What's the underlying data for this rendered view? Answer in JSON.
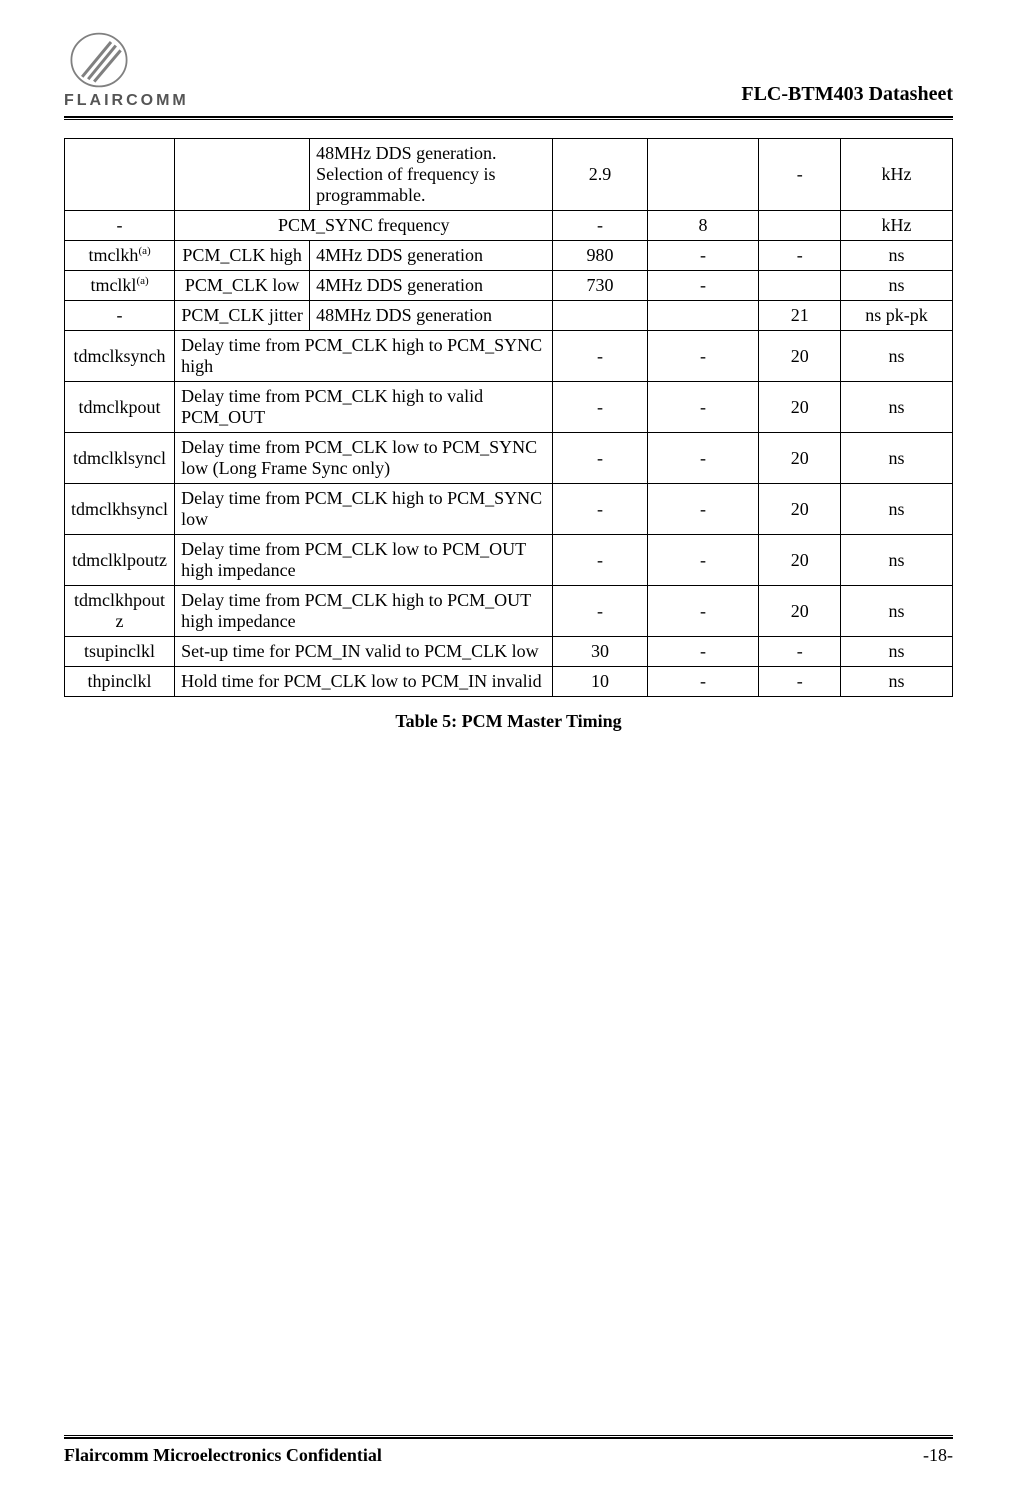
{
  "header": {
    "logo_text": "FLAIRCOMM",
    "doc_title": "FLC-BTM403 Datasheet"
  },
  "table": {
    "rows": [
      {
        "sym": "",
        "param": "",
        "desc": "48MHz DDS generation. Selection of frequency is programmable.",
        "min": "2.9",
        "typ": "",
        "max": "-",
        "unit": "kHz",
        "merge_param_desc": false
      },
      {
        "sym": "-",
        "param": "",
        "desc": "PCM_SYNC frequency",
        "min": "-",
        "typ": "8",
        "max": "",
        "unit": "kHz",
        "merge_param_desc": true
      },
      {
        "sym": "tmclkh",
        "sup": "(a)",
        "param": "PCM_CLK high",
        "desc": "4MHz DDS generation",
        "min": "980",
        "typ": "-",
        "max": "-",
        "unit": "ns",
        "merge_param_desc": false
      },
      {
        "sym": "tmclkl",
        "sup": "(a)",
        "param": "PCM_CLK low",
        "desc": "4MHz DDS generation",
        "min": "730",
        "typ": "-",
        "max": "",
        "unit": "ns",
        "merge_param_desc": false
      },
      {
        "sym": "-",
        "param": "PCM_CLK jitter",
        "desc": "48MHz DDS generation",
        "min": "",
        "typ": "",
        "max": "21",
        "unit": "ns pk-pk",
        "merge_param_desc": false
      },
      {
        "sym": "tdmclksynch",
        "param": "",
        "desc": "Delay time from PCM_CLK high to PCM_SYNC high",
        "min": "-",
        "typ": "-",
        "max": "20",
        "unit": "ns",
        "merge_param_desc": true
      },
      {
        "sym": "tdmclkpout",
        "param": "",
        "desc": "Delay time from PCM_CLK high to valid PCM_OUT",
        "min": "-",
        "typ": "-",
        "max": "20",
        "unit": "ns",
        "merge_param_desc": true
      },
      {
        "sym": "tdmclklsyncl",
        "param": "",
        "desc": "Delay time from PCM_CLK low to PCM_SYNC low (Long Frame Sync only)",
        "min": "-",
        "typ": "-",
        "max": "20",
        "unit": "ns",
        "merge_param_desc": true
      },
      {
        "sym": "tdmclkhsyncl",
        "param": "",
        "desc": "Delay time from PCM_CLK high to PCM_SYNC low",
        "min": "-",
        "typ": "-",
        "max": "20",
        "unit": "ns",
        "merge_param_desc": true
      },
      {
        "sym": "tdmclklpoutz",
        "param": "",
        "desc": "Delay time from PCM_CLK low to PCM_OUT high impedance",
        "min": "-",
        "typ": "-",
        "max": "20",
        "unit": "ns",
        "merge_param_desc": true
      },
      {
        "sym": "tdmclkhpoutz",
        "param": "",
        "desc": "Delay time from PCM_CLK high to PCM_OUT high impedance",
        "min": "-",
        "typ": "-",
        "max": "20",
        "unit": "ns",
        "merge_param_desc": true
      },
      {
        "sym": "tsupinclkl",
        "param": "",
        "desc": "Set-up time for PCM_IN valid to PCM_CLK low",
        "min": "30",
        "typ": "-",
        "max": "-",
        "unit": "ns",
        "merge_param_desc": true
      },
      {
        "sym": "thpinclkl",
        "param": "",
        "desc": "Hold time for PCM_CLK low to PCM_IN invalid",
        "min": "10",
        "typ": "-",
        "max": "-",
        "unit": "ns",
        "merge_param_desc": true
      }
    ],
    "caption": "Table 5: PCM Master Timing"
  },
  "footer": {
    "left": "Flaircomm Microelectronics Confidential",
    "right": "-18-"
  },
  "colors": {
    "text": "#000000",
    "border": "#000000",
    "logo_stroke": "#808080",
    "logo_text": "#555555",
    "background": "#ffffff"
  }
}
